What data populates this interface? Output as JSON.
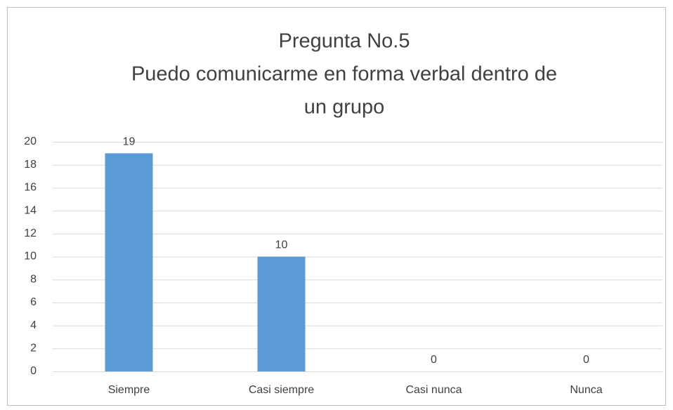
{
  "chart_data": {
    "type": "bar",
    "title": [
      "Pregunta No.5",
      "Puedo comunicarme en forma verbal dentro de",
      "un grupo"
    ],
    "categories": [
      "Siempre",
      "Casi siempre",
      "Casi nunca",
      "Nunca"
    ],
    "values": [
      19,
      10,
      0,
      0
    ],
    "color": "#5b9bd5",
    "ylim": [
      0,
      20
    ],
    "yticks": [
      0,
      2,
      4,
      6,
      8,
      10,
      12,
      14,
      16,
      18,
      20
    ],
    "grid": true
  }
}
